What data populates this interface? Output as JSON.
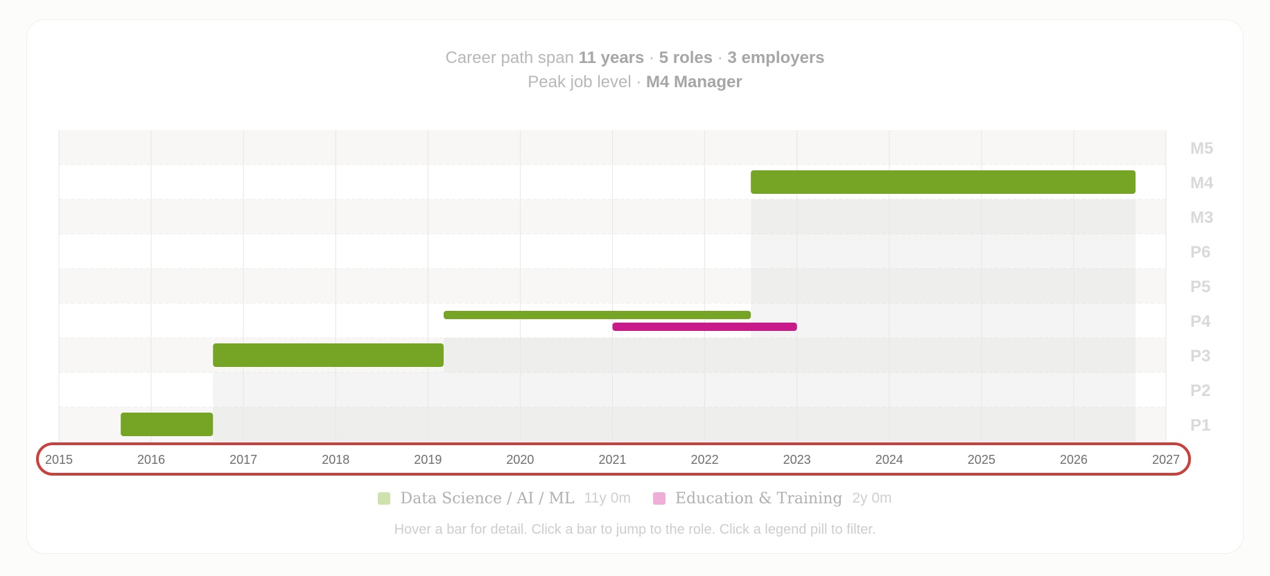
{
  "summary": {
    "line1_prefix": "Career path span",
    "span": "11 years",
    "sep": "·",
    "roles": "5 roles",
    "employers": "3 employers",
    "line2_prefix": "Peak job level",
    "peak": "M4 Manager"
  },
  "colors": {
    "data_science": "#76a526",
    "education": "#c81a88",
    "data_science_light": "#cfe2ae",
    "education_light": "#efaed5",
    "band_shade": "#f8f7f5",
    "area_fill": "#dcdfdc",
    "grid": "#e6e6e6",
    "axis_highlight": "#c9403c"
  },
  "legend": [
    {
      "name": "Data Science / AI / ML",
      "duration": "11y 0m",
      "color_key": "data_science_light"
    },
    {
      "name": "Education & Training",
      "duration": "2y 0m",
      "color_key": "education_light"
    }
  ],
  "hint": "Hover a bar for detail. Click a bar to jump to the role. Click a legend pill to filter.",
  "chart_data": {
    "type": "gantt",
    "x_ticks": [
      "2015",
      "2016",
      "2017",
      "2018",
      "2019",
      "2020",
      "2021",
      "2022",
      "2023",
      "2024",
      "2025",
      "2026",
      "2027"
    ],
    "xlim": [
      2015,
      2027
    ],
    "levels": [
      "P1",
      "P2",
      "P3",
      "P4",
      "P5",
      "P6",
      "M3",
      "M4",
      "M5"
    ],
    "roles": [
      {
        "category": "data_science",
        "start": 2015.67,
        "end": 2016.67,
        "level": "P1"
      },
      {
        "category": "data_science",
        "start": 2016.67,
        "end": 2019.17,
        "level": "P3"
      },
      {
        "category": "data_science",
        "start": 2019.17,
        "end": 2022.5,
        "level": "P4"
      },
      {
        "category": "education",
        "start": 2021.0,
        "end": 2023.0,
        "level": "P4"
      },
      {
        "category": "data_science",
        "start": 2022.5,
        "end": 2026.67,
        "level": "M4"
      }
    ],
    "grid": true,
    "legend_position": "bottom"
  }
}
